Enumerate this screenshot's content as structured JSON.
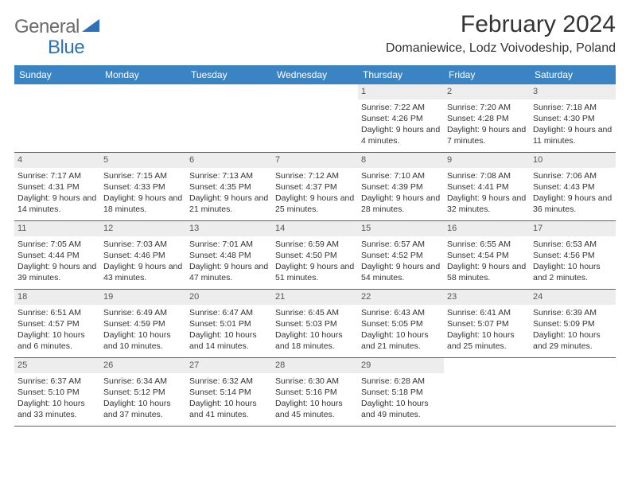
{
  "logo": {
    "general": "General",
    "blue": "Blue"
  },
  "title": "February 2024",
  "location": "Domaniewice, Lodz Voivodeship, Poland",
  "colors": {
    "header_bar": "#3b84c4",
    "header_text": "#ffffff",
    "daynum_bg": "#ededed",
    "border": "#3b6a95",
    "logo_gray": "#6b6b6b",
    "logo_blue": "#2d72b8"
  },
  "days_of_week": [
    "Sunday",
    "Monday",
    "Tuesday",
    "Wednesday",
    "Thursday",
    "Friday",
    "Saturday"
  ],
  "layout": {
    "columns": 7,
    "rows": 5,
    "first_day_column_index": 4
  },
  "days": [
    {
      "n": 1,
      "sunrise": "7:22 AM",
      "sunset": "4:26 PM",
      "daylight": "9 hours and 4 minutes."
    },
    {
      "n": 2,
      "sunrise": "7:20 AM",
      "sunset": "4:28 PM",
      "daylight": "9 hours and 7 minutes."
    },
    {
      "n": 3,
      "sunrise": "7:18 AM",
      "sunset": "4:30 PM",
      "daylight": "9 hours and 11 minutes."
    },
    {
      "n": 4,
      "sunrise": "7:17 AM",
      "sunset": "4:31 PM",
      "daylight": "9 hours and 14 minutes."
    },
    {
      "n": 5,
      "sunrise": "7:15 AM",
      "sunset": "4:33 PM",
      "daylight": "9 hours and 18 minutes."
    },
    {
      "n": 6,
      "sunrise": "7:13 AM",
      "sunset": "4:35 PM",
      "daylight": "9 hours and 21 minutes."
    },
    {
      "n": 7,
      "sunrise": "7:12 AM",
      "sunset": "4:37 PM",
      "daylight": "9 hours and 25 minutes."
    },
    {
      "n": 8,
      "sunrise": "7:10 AM",
      "sunset": "4:39 PM",
      "daylight": "9 hours and 28 minutes."
    },
    {
      "n": 9,
      "sunrise": "7:08 AM",
      "sunset": "4:41 PM",
      "daylight": "9 hours and 32 minutes."
    },
    {
      "n": 10,
      "sunrise": "7:06 AM",
      "sunset": "4:43 PM",
      "daylight": "9 hours and 36 minutes."
    },
    {
      "n": 11,
      "sunrise": "7:05 AM",
      "sunset": "4:44 PM",
      "daylight": "9 hours and 39 minutes."
    },
    {
      "n": 12,
      "sunrise": "7:03 AM",
      "sunset": "4:46 PM",
      "daylight": "9 hours and 43 minutes."
    },
    {
      "n": 13,
      "sunrise": "7:01 AM",
      "sunset": "4:48 PM",
      "daylight": "9 hours and 47 minutes."
    },
    {
      "n": 14,
      "sunrise": "6:59 AM",
      "sunset": "4:50 PM",
      "daylight": "9 hours and 51 minutes."
    },
    {
      "n": 15,
      "sunrise": "6:57 AM",
      "sunset": "4:52 PM",
      "daylight": "9 hours and 54 minutes."
    },
    {
      "n": 16,
      "sunrise": "6:55 AM",
      "sunset": "4:54 PM",
      "daylight": "9 hours and 58 minutes."
    },
    {
      "n": 17,
      "sunrise": "6:53 AM",
      "sunset": "4:56 PM",
      "daylight": "10 hours and 2 minutes."
    },
    {
      "n": 18,
      "sunrise": "6:51 AM",
      "sunset": "4:57 PM",
      "daylight": "10 hours and 6 minutes."
    },
    {
      "n": 19,
      "sunrise": "6:49 AM",
      "sunset": "4:59 PM",
      "daylight": "10 hours and 10 minutes."
    },
    {
      "n": 20,
      "sunrise": "6:47 AM",
      "sunset": "5:01 PM",
      "daylight": "10 hours and 14 minutes."
    },
    {
      "n": 21,
      "sunrise": "6:45 AM",
      "sunset": "5:03 PM",
      "daylight": "10 hours and 18 minutes."
    },
    {
      "n": 22,
      "sunrise": "6:43 AM",
      "sunset": "5:05 PM",
      "daylight": "10 hours and 21 minutes."
    },
    {
      "n": 23,
      "sunrise": "6:41 AM",
      "sunset": "5:07 PM",
      "daylight": "10 hours and 25 minutes."
    },
    {
      "n": 24,
      "sunrise": "6:39 AM",
      "sunset": "5:09 PM",
      "daylight": "10 hours and 29 minutes."
    },
    {
      "n": 25,
      "sunrise": "6:37 AM",
      "sunset": "5:10 PM",
      "daylight": "10 hours and 33 minutes."
    },
    {
      "n": 26,
      "sunrise": "6:34 AM",
      "sunset": "5:12 PM",
      "daylight": "10 hours and 37 minutes."
    },
    {
      "n": 27,
      "sunrise": "6:32 AM",
      "sunset": "5:14 PM",
      "daylight": "10 hours and 41 minutes."
    },
    {
      "n": 28,
      "sunrise": "6:30 AM",
      "sunset": "5:16 PM",
      "daylight": "10 hours and 45 minutes."
    },
    {
      "n": 29,
      "sunrise": "6:28 AM",
      "sunset": "5:18 PM",
      "daylight": "10 hours and 49 minutes."
    }
  ],
  "labels": {
    "sunrise": "Sunrise:",
    "sunset": "Sunset:",
    "daylight": "Daylight:"
  }
}
